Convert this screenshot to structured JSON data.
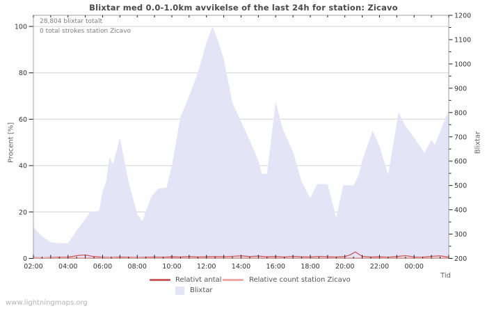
{
  "title": "Blixtar med 0.0-1.0km avvikelse of the last 24h for station: Zicavo",
  "annotations": {
    "total_label": "28,804 blixtar totalt",
    "station_label": "0 total strokes station Zicavo"
  },
  "footer": "www.lightningmaps.org",
  "colors": {
    "area_fill": "#e4e4f6",
    "relative_line": "#cd5c5c",
    "station_line": "#f2a6a6",
    "grid": "#d4d4d4",
    "frame": "#a0a0a0",
    "tick": "#1a1a1a",
    "tick_label": "#333333"
  },
  "chart_data": {
    "type": "area",
    "title": "Blixtar med 0.0-1.0km avvikelse of the last 24h for station: Zicavo",
    "x_axis": {
      "label": "Tid",
      "start_time": "02:00",
      "hours_span": 24,
      "tick_labels": [
        "02:00",
        "04:00",
        "06:00",
        "08:00",
        "10:00",
        "12:00",
        "14:00",
        "16:00",
        "18:00",
        "20:00",
        "22:00",
        "00:00"
      ],
      "label_every_hours": 2,
      "minor_every_hours": 0.5
    },
    "y_left": {
      "label": "Procent  [%]",
      "ticks": [
        0,
        20,
        40,
        60,
        80,
        100
      ],
      "range": [
        0,
        100
      ]
    },
    "y_right": {
      "label": "Blixtar",
      "ticks": [
        200,
        300,
        400,
        500,
        600,
        700,
        800,
        900,
        1000,
        1100,
        1200
      ],
      "minor_step": 50,
      "range": [
        200,
        1200
      ]
    },
    "grid": true,
    "legend_position": "bottom-center",
    "series": [
      {
        "name": "Blixtar",
        "type": "area",
        "axis": "right",
        "color": "#e4e4f6",
        "points_hour_pct": [
          [
            0,
            13.5
          ],
          [
            0.5,
            9.5
          ],
          [
            1,
            7
          ],
          [
            1.5,
            6.5
          ],
          [
            2,
            6.5
          ],
          [
            2.5,
            12
          ],
          [
            3,
            17
          ],
          [
            3.3,
            20
          ],
          [
            3.8,
            20.5
          ],
          [
            4,
            29
          ],
          [
            4.2,
            33
          ],
          [
            4.4,
            43.5
          ],
          [
            4.6,
            40.5
          ],
          [
            5,
            52
          ],
          [
            5.5,
            33
          ],
          [
            6,
            19
          ],
          [
            6.3,
            16
          ],
          [
            6.8,
            26.5
          ],
          [
            7.2,
            30
          ],
          [
            7.7,
            30.5
          ],
          [
            8,
            40
          ],
          [
            8.5,
            61
          ],
          [
            9,
            70
          ],
          [
            9.5,
            80
          ],
          [
            10,
            93
          ],
          [
            10.35,
            100
          ],
          [
            10.75,
            92
          ],
          [
            11,
            86
          ],
          [
            11.5,
            67
          ],
          [
            12,
            59
          ],
          [
            12.5,
            51
          ],
          [
            13,
            42
          ],
          [
            13.2,
            36.5
          ],
          [
            13.5,
            36.5
          ],
          [
            14,
            67.5
          ],
          [
            14.4,
            56
          ],
          [
            15,
            46
          ],
          [
            15.5,
            33
          ],
          [
            16,
            26
          ],
          [
            16.4,
            32
          ],
          [
            17,
            32
          ],
          [
            17.5,
            17.5
          ],
          [
            17.9,
            31.5
          ],
          [
            18.5,
            31.5
          ],
          [
            18.8,
            36
          ],
          [
            19,
            42
          ],
          [
            19.6,
            55
          ],
          [
            20,
            48.5
          ],
          [
            20.5,
            36
          ],
          [
            21.1,
            63
          ],
          [
            21.5,
            57
          ],
          [
            22,
            52
          ],
          [
            22.6,
            45.5
          ],
          [
            23,
            51
          ],
          [
            23.2,
            49
          ],
          [
            24,
            64
          ]
        ]
      },
      {
        "name": "Relativt antal",
        "type": "line",
        "axis": "left",
        "color": "#cd5c5c",
        "points_hour_pct": [
          [
            0,
            0.4
          ],
          [
            0.5,
            0.3
          ],
          [
            1,
            0.4
          ],
          [
            1.5,
            0.5
          ],
          [
            2,
            0.5
          ],
          [
            2.6,
            1.3
          ],
          [
            3,
            1.5
          ],
          [
            3.4,
            0.9
          ],
          [
            4,
            0.5
          ],
          [
            4.5,
            0.4
          ],
          [
            5,
            0.6
          ],
          [
            5.5,
            0.5
          ],
          [
            6,
            0.4
          ],
          [
            6.5,
            0.5
          ],
          [
            7,
            0.6
          ],
          [
            7.5,
            0.5
          ],
          [
            8,
            0.7
          ],
          [
            8.5,
            0.6
          ],
          [
            9,
            0.8
          ],
          [
            9.5,
            0.6
          ],
          [
            10,
            0.7
          ],
          [
            10.5,
            0.8
          ],
          [
            11,
            0.7
          ],
          [
            11.5,
            0.9
          ],
          [
            12,
            1.1
          ],
          [
            12.5,
            0.8
          ],
          [
            13,
            1.0
          ],
          [
            13.5,
            0.7
          ],
          [
            14,
            0.8
          ],
          [
            14.5,
            0.6
          ],
          [
            15,
            0.9
          ],
          [
            15.5,
            0.7
          ],
          [
            16,
            0.6
          ],
          [
            16.5,
            0.9
          ],
          [
            17,
            0.7
          ],
          [
            17.5,
            0.6
          ],
          [
            18,
            0.8
          ],
          [
            18.3,
            1.5
          ],
          [
            18.6,
            2.8
          ],
          [
            19,
            0.9
          ],
          [
            19.5,
            0.6
          ],
          [
            20,
            0.7
          ],
          [
            20.5,
            0.5
          ],
          [
            21,
            0.8
          ],
          [
            21.5,
            1.2
          ],
          [
            22,
            0.6
          ],
          [
            22.5,
            0.5
          ],
          [
            23,
            0.9
          ],
          [
            23.5,
            1.1
          ],
          [
            24,
            0.5
          ]
        ]
      },
      {
        "name": "Relative count station Zicavo",
        "type": "line",
        "axis": "left",
        "color": "#f2a6a6",
        "points_hour_pct": [
          [
            0,
            0
          ],
          [
            24,
            0
          ]
        ]
      }
    ],
    "legend": [
      {
        "label": "Relativt antal",
        "swatch": "line",
        "color": "#cd5c5c"
      },
      {
        "label": "Relative count station Zicavo",
        "swatch": "line",
        "color": "#f2a6a6"
      },
      {
        "label": "Blixtar",
        "swatch": "box",
        "color": "#e4e4f6"
      }
    ]
  }
}
